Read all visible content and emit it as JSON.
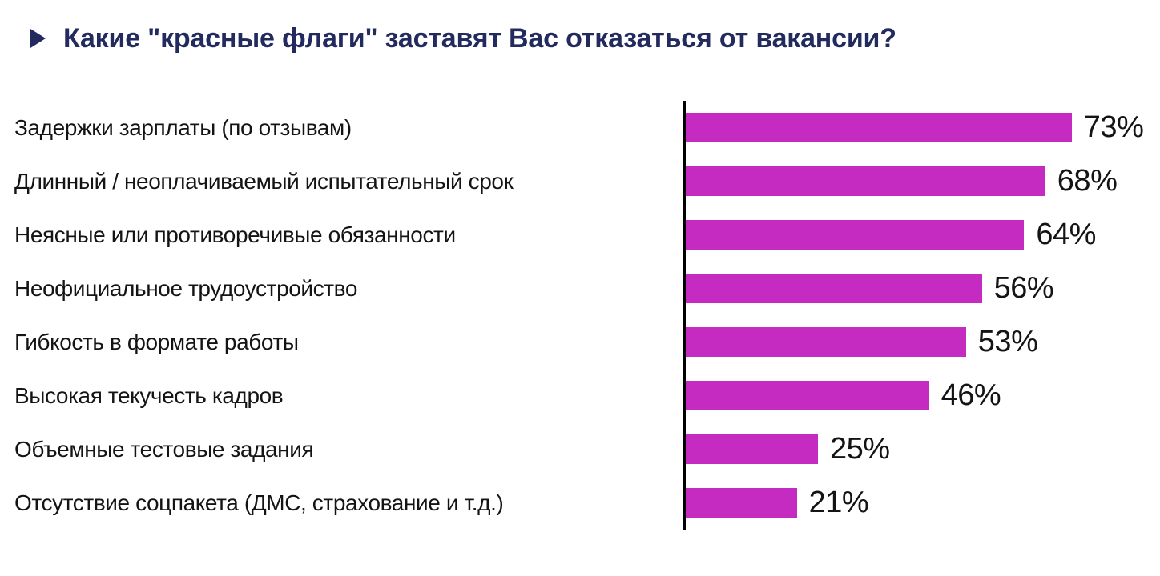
{
  "title": {
    "icon": "play-triangle",
    "text": "Какие \"красные флаги\" заставят Вас отказаться от вакансии?"
  },
  "colors": {
    "bar": "#c52bc0",
    "title": "#222a5e",
    "text": "#141414",
    "axis": "#000000"
  },
  "chart_data": {
    "type": "bar",
    "orientation": "horizontal",
    "title": "Какие \"красные флаги\" заставят Вас отказаться от вакансии?",
    "categories": [
      "Задержки зарплаты (по отзывам)",
      "Длинный / неоплачиваемый испытательный срок",
      "Неясные или противоречивые обязанности",
      "Неофициальное трудоустройство",
      "Гибкость в формате работы",
      "Высокая текучесть кадров",
      "Объемные тестовые задания",
      "Отсутствие соцпакета (ДМС, страхование и т.д.)"
    ],
    "values": [
      73,
      68,
      64,
      56,
      53,
      46,
      25,
      21
    ],
    "value_labels": [
      "73%",
      "68%",
      "64%",
      "56%",
      "53%",
      "46%",
      "25%",
      "21%"
    ],
    "unit": "%",
    "xlim": [
      0,
      80
    ],
    "grid": false,
    "legend": false,
    "value_label_position": "end-of-bar"
  }
}
